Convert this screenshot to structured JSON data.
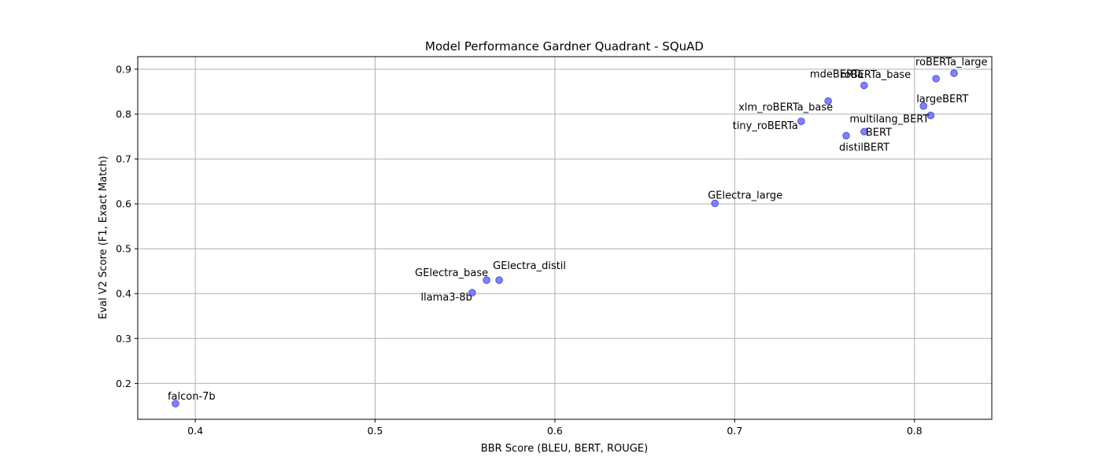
{
  "chart_data": {
    "type": "scatter",
    "title": "Model Performance Gardner Quadrant - SQuAD",
    "xlabel": "BBR Score (BLEU, BERT, ROUGE)",
    "ylabel": "Eval V2 Score (F1, Exact Match)",
    "xlim": [
      0.368,
      0.843
    ],
    "ylim": [
      0.12,
      0.928
    ],
    "xticks": [
      {
        "value": 0.4,
        "label": "0.4"
      },
      {
        "value": 0.5,
        "label": "0.5"
      },
      {
        "value": 0.6,
        "label": "0.6"
      },
      {
        "value": 0.7,
        "label": "0.7"
      },
      {
        "value": 0.8,
        "label": "0.8"
      }
    ],
    "yticks": [
      {
        "value": 0.2,
        "label": "0.2"
      },
      {
        "value": 0.3,
        "label": "0.3"
      },
      {
        "value": 0.4,
        "label": "0.4"
      },
      {
        "value": 0.5,
        "label": "0.5"
      },
      {
        "value": 0.6,
        "label": "0.6"
      },
      {
        "value": 0.7,
        "label": "0.7"
      },
      {
        "value": 0.8,
        "label": "0.8"
      },
      {
        "value": 0.9,
        "label": "0.9"
      }
    ],
    "grid": true,
    "marker_color": "#6b6bff",
    "marker_edge": "#3c3cd6",
    "points": [
      {
        "label": "falcon-7b",
        "x": 0.389,
        "y": 0.155
      },
      {
        "label": "llama3-8b",
        "x": 0.554,
        "y": 0.402
      },
      {
        "label": "GElectra_base",
        "x": 0.562,
        "y": 0.43
      },
      {
        "label": "GElectra_distil",
        "x": 0.569,
        "y": 0.43
      },
      {
        "label": "GElectra_large",
        "x": 0.689,
        "y": 0.601
      },
      {
        "label": "tiny_roBERTa",
        "x": 0.737,
        "y": 0.784
      },
      {
        "label": "xlm_roBERTa_base",
        "x": 0.752,
        "y": 0.829
      },
      {
        "label": "distilBERT",
        "x": 0.762,
        "y": 0.752
      },
      {
        "label": "BERT",
        "x": 0.772,
        "y": 0.761
      },
      {
        "label": "mdeBERTa",
        "x": 0.772,
        "y": 0.864
      },
      {
        "label": "largeBERT",
        "x": 0.805,
        "y": 0.818
      },
      {
        "label": "multilang_BERT",
        "x": 0.809,
        "y": 0.797
      },
      {
        "label": "roBERTa_base",
        "x": 0.812,
        "y": 0.879
      },
      {
        "label": "roBERTa_large",
        "x": 0.822,
        "y": 0.891
      }
    ]
  }
}
